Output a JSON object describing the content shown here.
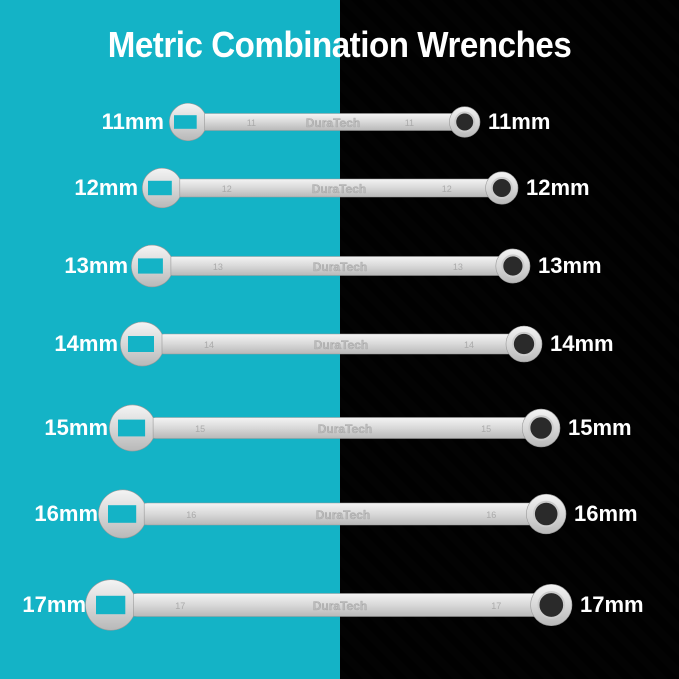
{
  "title": "Metric Combination Wrenches",
  "brand": "DuraTech",
  "colors": {
    "left_background": "#14b3c6",
    "right_background": "carbon-fiber-black",
    "text": "#ffffff"
  },
  "wrenches": [
    {
      "size_label": "11mm",
      "stamp": "11"
    },
    {
      "size_label": "12mm",
      "stamp": "12"
    },
    {
      "size_label": "13mm",
      "stamp": "13"
    },
    {
      "size_label": "14mm",
      "stamp": "14"
    },
    {
      "size_label": "15mm",
      "stamp": "15"
    },
    {
      "size_label": "16mm",
      "stamp": "16"
    },
    {
      "size_label": "17mm",
      "stamp": "17"
    }
  ]
}
